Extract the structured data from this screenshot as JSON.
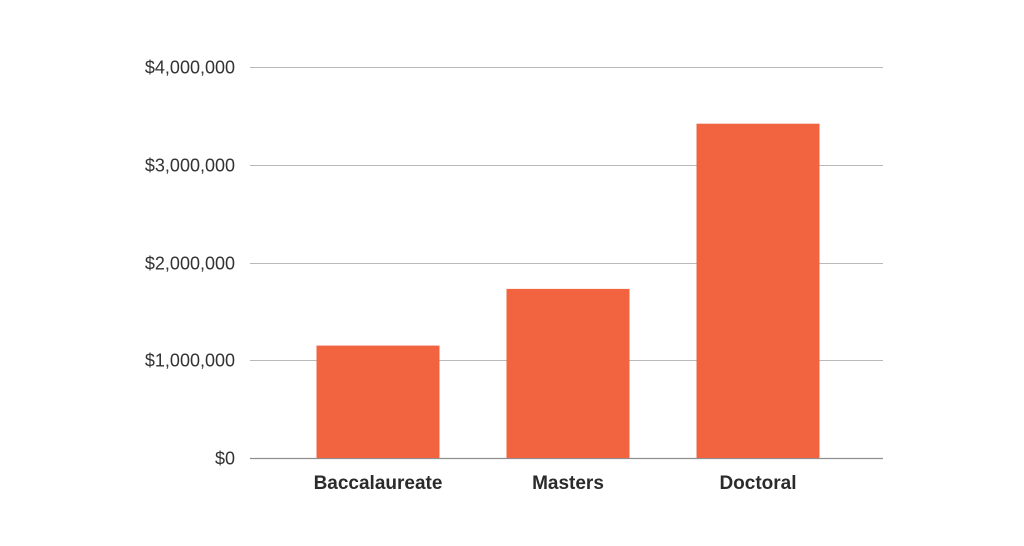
{
  "chart_data": {
    "type": "bar",
    "categories": [
      "Baccalaureate",
      "Masters",
      "Doctoral"
    ],
    "series": [
      {
        "values": [
          1150000,
          1730000,
          3420000
        ]
      }
    ],
    "y_ticks": [
      "$0",
      "$1,000,000",
      "$2,000,000",
      "$3,000,000",
      "$4,000,000"
    ],
    "y_tick_values": [
      0,
      1000000,
      2000000,
      3000000,
      4000000
    ],
    "ylim": [
      0,
      4000000
    ],
    "title": "",
    "xlabel": "",
    "ylabel": "",
    "grid": true,
    "legend": "none",
    "bar_color": "#f26440"
  }
}
